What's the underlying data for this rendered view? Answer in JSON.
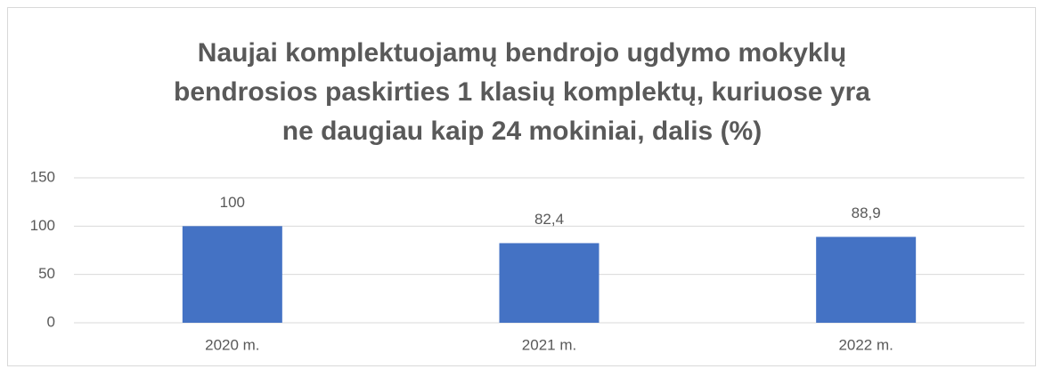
{
  "chart_data": {
    "type": "bar",
    "title": "Naujai komplektuojamų bendrojo ugdymo mokyklų bendrosios paskirties 1 klasių komplektų, kuriuose yra ne daugiau kaip 24 mokiniai, dalis (%)",
    "categories": [
      "2020 m.",
      "2021 m.",
      "2022 m."
    ],
    "values": [
      100,
      82.4,
      88.9
    ],
    "value_labels": [
      "100",
      "82,4",
      "88,9"
    ],
    "color": "#4472c4",
    "ylim": [
      0,
      150
    ],
    "yticks": [
      0,
      50,
      100,
      150
    ],
    "grid": true
  }
}
